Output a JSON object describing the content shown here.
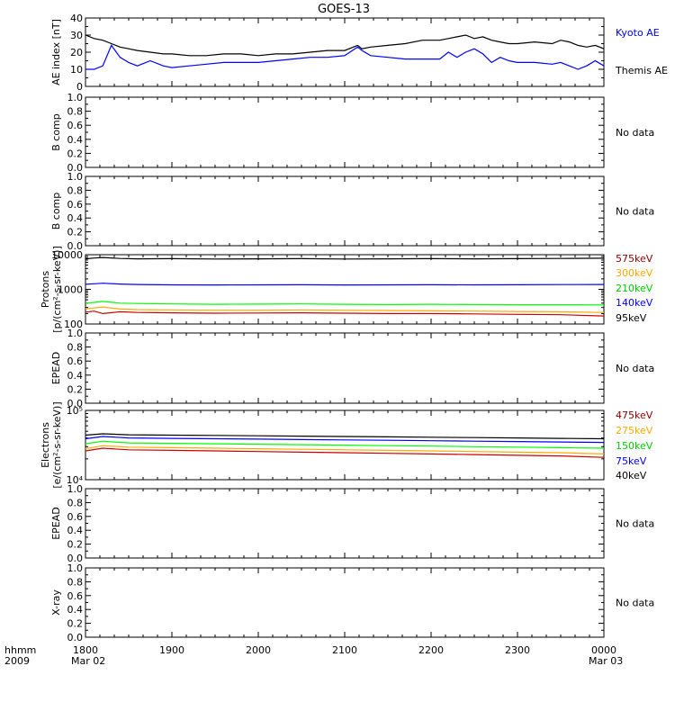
{
  "title": "GOES-13",
  "time_axis": {
    "corner_top": "hhmm",
    "corner_bottom": "2009",
    "ticks": [
      "1800",
      "1900",
      "2000",
      "2100",
      "2200",
      "2300",
      "0000"
    ],
    "date_start": "Mar 02",
    "date_end": "Mar 03"
  },
  "colors": {
    "black": "#000000",
    "blue": "#0000ff",
    "green": "#00ff00",
    "orange": "#ffaa00",
    "red": "#cc0000",
    "dark_red": "#8b0000"
  },
  "chart_data": [
    {
      "type": "line",
      "panel": "ae",
      "ylabel": "AE index [nT]",
      "ylim": [
        0,
        40
      ],
      "yticks": [
        "0",
        "10",
        "20",
        "30",
        "40"
      ],
      "x_range_hours": [
        18,
        24
      ],
      "legend": [
        "Kyoto AE",
        "Themis AE"
      ],
      "series": [
        {
          "name": "Kyoto AE",
          "color": "#0000ff",
          "x": [
            18.0,
            18.1,
            18.2,
            18.3,
            18.4,
            18.5,
            18.6,
            18.75,
            18.9,
            19.0,
            19.2,
            19.4,
            19.6,
            19.8,
            20.0,
            20.2,
            20.4,
            20.6,
            20.8,
            21.0,
            21.15,
            21.2,
            21.3,
            21.5,
            21.7,
            21.9,
            22.1,
            22.2,
            22.3,
            22.4,
            22.5,
            22.6,
            22.7,
            22.8,
            22.9,
            23.0,
            23.2,
            23.4,
            23.5,
            23.6,
            23.7,
            23.8,
            23.9,
            24.0
          ],
          "values": [
            10,
            10,
            12,
            24,
            17,
            14,
            12,
            15,
            12,
            11,
            12,
            13,
            14,
            14,
            14,
            15,
            16,
            17,
            17,
            18,
            23,
            21,
            18,
            17,
            16,
            16,
            16,
            20,
            17,
            20,
            22,
            19,
            14,
            17,
            15,
            14,
            14,
            13,
            14,
            12,
            10,
            12,
            15,
            12
          ]
        },
        {
          "name": "Themis AE",
          "color": "#000000",
          "x": [
            18.0,
            18.1,
            18.2,
            18.3,
            18.4,
            18.5,
            18.6,
            18.75,
            18.9,
            19.0,
            19.2,
            19.4,
            19.6,
            19.8,
            20.0,
            20.2,
            20.4,
            20.6,
            20.8,
            21.0,
            21.15,
            21.2,
            21.3,
            21.5,
            21.7,
            21.9,
            22.1,
            22.2,
            22.3,
            22.4,
            22.5,
            22.6,
            22.7,
            22.8,
            22.9,
            23.0,
            23.2,
            23.4,
            23.5,
            23.6,
            23.7,
            23.8,
            23.9,
            24.0
          ],
          "values": [
            30,
            28,
            27,
            25,
            23,
            22,
            21,
            20,
            19,
            19,
            18,
            18,
            19,
            19,
            18,
            19,
            19,
            20,
            21,
            21,
            24,
            22,
            23,
            24,
            25,
            27,
            27,
            28,
            29,
            30,
            28,
            29,
            27,
            26,
            25,
            25,
            26,
            25,
            27,
            26,
            24,
            23,
            24,
            22
          ]
        }
      ]
    },
    {
      "type": "line",
      "panel": "bcomp1",
      "ylabel": "B comp",
      "ylim": [
        0,
        1
      ],
      "yticks": [
        "0.0",
        "0.2",
        "0.4",
        "0.6",
        "0.8",
        "1.0"
      ],
      "note": "No data"
    },
    {
      "type": "line",
      "panel": "bcomp2",
      "ylabel": "B comp",
      "ylim": [
        0,
        1
      ],
      "yticks": [
        "0.0",
        "0.2",
        "0.4",
        "0.6",
        "0.8",
        "1.0"
      ],
      "note": "No data"
    },
    {
      "type": "line",
      "panel": "protons",
      "ylabel_line1": "Protons",
      "ylabel_line2": "[p/(cm²-s-sr-keV)]",
      "log_scale": true,
      "ylim": [
        100,
        10000
      ],
      "yticks": [
        "100",
        "1000",
        "10000"
      ],
      "x_range_hours": [
        18,
        24
      ],
      "legend": [
        "575keV",
        "300keV",
        "210keV",
        "140keV",
        "95keV"
      ],
      "series": [
        {
          "name": "95keV",
          "color": "#000000",
          "x": [
            18.0,
            18.1,
            18.2,
            18.4,
            18.6,
            19.0,
            19.5,
            20.0,
            20.5,
            21.0,
            21.5,
            22.0,
            22.5,
            23.0,
            23.5,
            24.0
          ],
          "values": [
            7600,
            8000,
            8300,
            7800,
            7600,
            7700,
            7500,
            7600,
            7700,
            7500,
            7600,
            7700,
            7600,
            7700,
            7800,
            7900
          ]
        },
        {
          "name": "140keV",
          "color": "#0000ff",
          "x": [
            18.0,
            18.1,
            18.2,
            18.4,
            18.6,
            19.0,
            19.5,
            20.0,
            20.5,
            21.0,
            21.5,
            22.0,
            22.5,
            23.0,
            23.5,
            24.0
          ],
          "values": [
            1400,
            1450,
            1500,
            1420,
            1380,
            1350,
            1340,
            1350,
            1360,
            1340,
            1350,
            1360,
            1350,
            1360,
            1370,
            1380
          ]
        },
        {
          "name": "210keV",
          "color": "#00ff00",
          "x": [
            18.0,
            18.1,
            18.2,
            18.4,
            18.6,
            19.0,
            19.5,
            20.0,
            20.5,
            21.0,
            21.5,
            22.0,
            22.5,
            23.0,
            23.5,
            24.0
          ],
          "values": [
            400,
            420,
            450,
            400,
            390,
            380,
            370,
            375,
            380,
            370,
            365,
            370,
            365,
            360,
            360,
            355
          ]
        },
        {
          "name": "300keV",
          "color": "#ffaa00",
          "x": [
            18.0,
            18.1,
            18.2,
            18.4,
            18.6,
            19.0,
            19.5,
            20.0,
            20.5,
            21.0,
            21.5,
            22.0,
            22.5,
            23.0,
            23.5,
            24.0
          ],
          "values": [
            270,
            290,
            310,
            270,
            260,
            255,
            250,
            250,
            255,
            250,
            245,
            240,
            235,
            230,
            225,
            215
          ]
        },
        {
          "name": "575keV",
          "color": "#cc0000",
          "x": [
            18.0,
            18.1,
            18.2,
            18.4,
            18.6,
            19.0,
            19.5,
            20.0,
            20.5,
            21.0,
            21.5,
            22.0,
            22.5,
            23.0,
            23.5,
            24.0
          ],
          "values": [
            220,
            235,
            200,
            225,
            215,
            210,
            205,
            208,
            210,
            205,
            200,
            200,
            195,
            190,
            185,
            170
          ]
        }
      ]
    },
    {
      "type": "line",
      "panel": "epead1",
      "ylabel": "EPEAD",
      "ylim": [
        0,
        1
      ],
      "yticks": [
        "0.0",
        "0.2",
        "0.4",
        "0.6",
        "0.8",
        "1.0"
      ],
      "note": "No data"
    },
    {
      "type": "line",
      "panel": "electrons",
      "ylabel_line1": "Electrons",
      "ylabel_line2": "[e/(cm²-s-sr-keV)]",
      "log_scale": true,
      "ylim": [
        10000,
        100000
      ],
      "yticks": [
        "10⁴",
        "10⁵"
      ],
      "x_range_hours": [
        18,
        24
      ],
      "legend": [
        "475keV",
        "275keV",
        "150keV",
        "75keV",
        "40keV"
      ],
      "series": [
        {
          "name": "40keV",
          "color": "#000000",
          "x": [
            18.0,
            18.2,
            18.5,
            19.0,
            19.5,
            20.0,
            20.5,
            21.0,
            21.5,
            22.0,
            22.5,
            23.0,
            23.5,
            24.0
          ],
          "values": [
            44000,
            46000,
            44500,
            44000,
            43500,
            43000,
            42500,
            42000,
            41500,
            41000,
            40500,
            40000,
            39500,
            39000
          ]
        },
        {
          "name": "75keV",
          "color": "#0000ff",
          "x": [
            18.0,
            18.2,
            18.5,
            19.0,
            19.5,
            20.0,
            20.5,
            21.0,
            21.5,
            22.0,
            22.5,
            23.0,
            23.5,
            24.0
          ],
          "values": [
            39000,
            42000,
            40000,
            39500,
            39000,
            38500,
            38000,
            37500,
            37000,
            36500,
            36000,
            35500,
            35000,
            34500
          ]
        },
        {
          "name": "150keV",
          "color": "#00ff00",
          "x": [
            18.0,
            18.2,
            18.5,
            19.0,
            19.5,
            20.0,
            20.5,
            21.0,
            21.5,
            22.0,
            22.5,
            23.0,
            23.5,
            24.0
          ],
          "values": [
            33000,
            36000,
            34000,
            33500,
            33000,
            32500,
            32000,
            31500,
            31000,
            30500,
            30000,
            29500,
            29000,
            28500
          ]
        },
        {
          "name": "275keV",
          "color": "#ffaa00",
          "x": [
            18.0,
            18.2,
            18.5,
            19.0,
            19.5,
            20.0,
            20.5,
            21.0,
            21.5,
            22.0,
            22.5,
            23.0,
            23.5,
            24.0
          ],
          "values": [
            28000,
            31000,
            29500,
            29000,
            28500,
            28000,
            27500,
            27000,
            26500,
            26000,
            25500,
            25000,
            24500,
            23500
          ]
        },
        {
          "name": "475keV",
          "color": "#cc0000",
          "x": [
            18.0,
            18.2,
            18.5,
            19.0,
            19.5,
            20.0,
            20.5,
            21.0,
            21.5,
            22.0,
            22.5,
            23.0,
            23.5,
            24.0
          ],
          "values": [
            26000,
            28500,
            27000,
            26500,
            26000,
            25500,
            25000,
            24500,
            24000,
            23500,
            23000,
            22500,
            22000,
            21000
          ]
        }
      ]
    },
    {
      "type": "line",
      "panel": "epead2",
      "ylabel": "EPEAD",
      "ylim": [
        0,
        1
      ],
      "yticks": [
        "0.0",
        "0.2",
        "0.4",
        "0.6",
        "0.8",
        "1.0"
      ],
      "note": "No data"
    },
    {
      "type": "line",
      "panel": "xray",
      "ylabel": "X-ray",
      "ylim": [
        0,
        1
      ],
      "yticks": [
        "0.0",
        "0.2",
        "0.4",
        "0.6",
        "0.8",
        "1.0"
      ],
      "note": "No data"
    }
  ]
}
